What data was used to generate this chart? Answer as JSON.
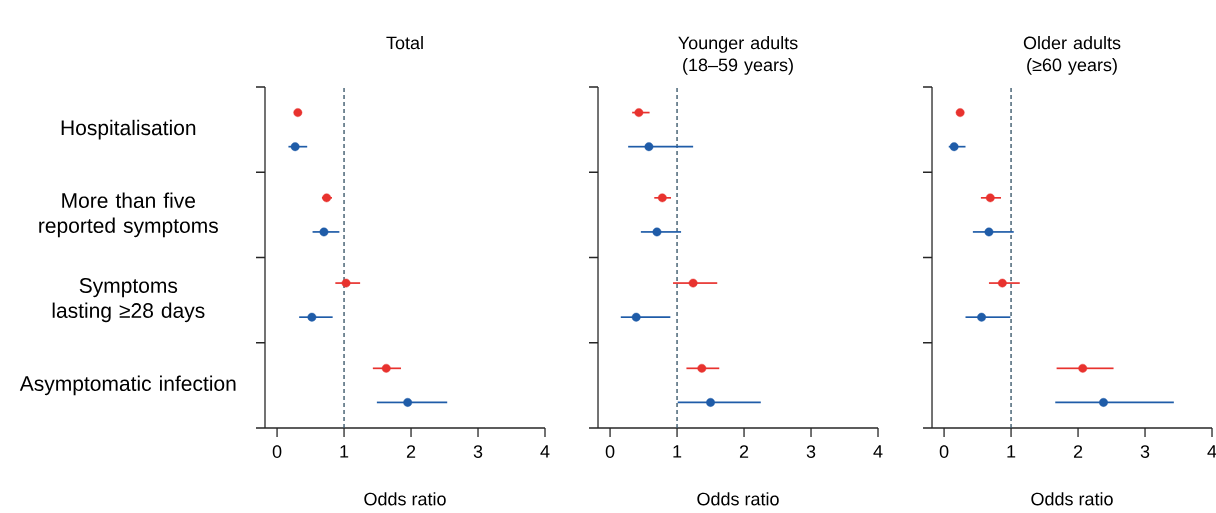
{
  "chart_data": [
    {
      "type": "scatter",
      "orientation": "horizontal",
      "title": "Total",
      "xlabel": "Odds ratio",
      "categories": [
        "Hospitalisation",
        "More than five reported symptoms",
        "Symptoms lasting ≥28 days",
        "Asymptomatic infection"
      ],
      "xlim": [
        -0.18,
        4
      ],
      "xticks": [
        0,
        1,
        2,
        3,
        4
      ],
      "marker": "circle",
      "ref_lines": [
        {
          "axis": "x",
          "value": 1,
          "color": "#3d5a6c",
          "line_style": "dashed"
        }
      ],
      "series": [
        {
          "color": "#e8322e",
          "values": [
            0.31,
            0.74,
            1.03,
            1.63
          ],
          "errors": [
            null,
            [
              0.67,
              0.82
            ],
            [
              0.87,
              1.24
            ],
            [
              1.43,
              1.85
            ]
          ]
        },
        {
          "color": "#1f5ca8",
          "values": [
            0.27,
            0.7,
            0.52,
            1.95
          ],
          "errors": [
            [
              0.17,
              0.45
            ],
            [
              0.53,
              0.93
            ],
            [
              0.33,
              0.83
            ],
            [
              1.49,
              2.54
            ]
          ]
        }
      ]
    },
    {
      "type": "scatter",
      "orientation": "horizontal",
      "title": "Younger adults (18–59 years)",
      "xlabel": "Odds ratio",
      "categories": [
        null,
        null,
        null,
        null
      ],
      "tick_labels": "x",
      "xlim": [
        -0.18,
        4
      ],
      "xticks": [
        0,
        1,
        2,
        3,
        4
      ],
      "marker": "circle",
      "ref_lines": [
        {
          "axis": "x",
          "value": 1,
          "color": "#3d5a6c",
          "line_style": "dashed"
        }
      ],
      "series": [
        {
          "color": "#e8322e",
          "values": [
            0.43,
            0.78,
            1.24,
            1.37
          ],
          "errors": [
            [
              0.33,
              0.59
            ],
            [
              0.66,
              0.91
            ],
            [
              0.94,
              1.6
            ],
            [
              1.14,
              1.63
            ]
          ]
        },
        {
          "color": "#1f5ca8",
          "values": [
            0.58,
            0.7,
            0.39,
            1.5
          ],
          "errors": [
            [
              0.27,
              1.24
            ],
            [
              0.46,
              1.06
            ],
            [
              0.16,
              0.9
            ],
            [
              1.01,
              2.25
            ]
          ]
        }
      ]
    },
    {
      "type": "scatter",
      "orientation": "horizontal",
      "title": "Older adults (≥60 years)",
      "xlabel": "Odds ratio",
      "categories": [
        null,
        null,
        null,
        null
      ],
      "tick_labels": "x",
      "xlim": [
        -0.18,
        4
      ],
      "xticks": [
        0,
        1,
        2,
        3,
        4
      ],
      "marker": "circle",
      "ref_lines": [
        {
          "axis": "x",
          "value": 1,
          "color": "#3d5a6c",
          "line_style": "dashed"
        }
      ],
      "series": [
        {
          "color": "#e8322e",
          "values": [
            0.24,
            0.69,
            0.87,
            2.07
          ],
          "errors": [
            null,
            [
              0.55,
              0.85
            ],
            [
              0.67,
              1.13
            ],
            [
              1.68,
              2.53
            ]
          ]
        },
        {
          "color": "#1f5ca8",
          "values": [
            0.15,
            0.67,
            0.56,
            2.38
          ],
          "errors": [
            [
              0.07,
              0.32
            ],
            [
              0.43,
              1.04
            ],
            [
              0.32,
              0.99
            ],
            [
              1.66,
              3.43
            ]
          ]
        }
      ]
    }
  ]
}
